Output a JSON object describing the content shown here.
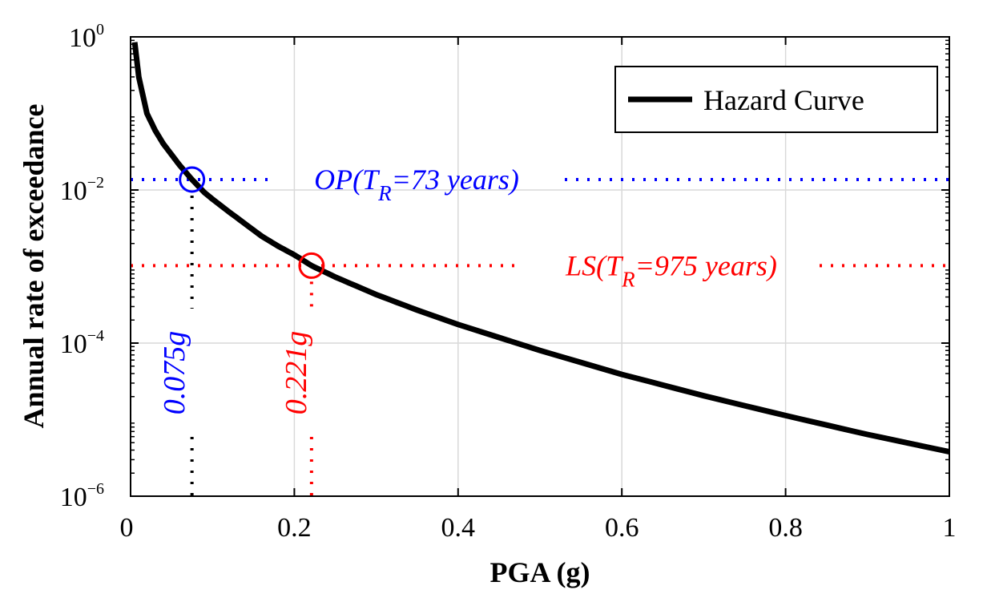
{
  "chart_data": {
    "type": "line",
    "xlabel": "PGA (g)",
    "ylabel": "Annual rate of exceedance",
    "xlim": [
      0,
      1
    ],
    "ylim": [
      1e-06,
      1
    ],
    "yscale": "log",
    "grid": true,
    "x_ticks": [
      {
        "value": 0,
        "label": "0"
      },
      {
        "value": 0.2,
        "label": "0.2"
      },
      {
        "value": 0.4,
        "label": "0.4"
      },
      {
        "value": 0.6,
        "label": "0.6"
      },
      {
        "value": 0.8,
        "label": "0.8"
      },
      {
        "value": 1,
        "label": "1"
      }
    ],
    "y_ticks": [
      {
        "value": 1,
        "base": "10",
        "exp": "0"
      },
      {
        "value": 0.01,
        "base": "10",
        "exp": "−2"
      },
      {
        "value": 0.0001,
        "base": "10",
        "exp": "−4"
      },
      {
        "value": 1e-06,
        "base": "10",
        "exp": "−6"
      }
    ],
    "legend": {
      "position": "top-right",
      "entries": [
        {
          "label": "Hazard Curve",
          "color": "#000000"
        }
      ]
    },
    "series": [
      {
        "name": "Hazard Curve",
        "color": "#000000",
        "x": [
          0.005,
          0.01,
          0.02,
          0.03,
          0.04,
          0.05,
          0.06,
          0.075,
          0.09,
          0.1,
          0.12,
          0.14,
          0.16,
          0.18,
          0.2,
          0.221,
          0.25,
          0.3,
          0.35,
          0.4,
          0.5,
          0.6,
          0.7,
          0.8,
          0.9,
          1.0
        ],
        "y": [
          0.85,
          0.3,
          0.1,
          0.06,
          0.04,
          0.029,
          0.021,
          0.0137,
          0.0093,
          0.0076,
          0.0052,
          0.0036,
          0.0025,
          0.00185,
          0.00142,
          0.001026,
          0.00073,
          0.00043,
          0.00027,
          0.000175,
          8.01e-05,
          3.9e-05,
          2.05e-05,
          1.13e-05,
          6.4e-06,
          3.8e-06
        ]
      }
    ],
    "reference_points": [
      {
        "name": "OP",
        "color": "#0000ff",
        "rate": 0.0137,
        "pga": 0.075,
        "label_main": "OP(T",
        "label_sub": "R",
        "label_tail": "=73 years)",
        "value_label": "0.075g"
      },
      {
        "name": "LS",
        "color": "#ff0000",
        "rate": 0.001026,
        "pga": 0.221,
        "label_main": "LS(T",
        "label_sub": "R",
        "label_tail": "=975 years)",
        "value_label": "0.221g"
      }
    ]
  }
}
